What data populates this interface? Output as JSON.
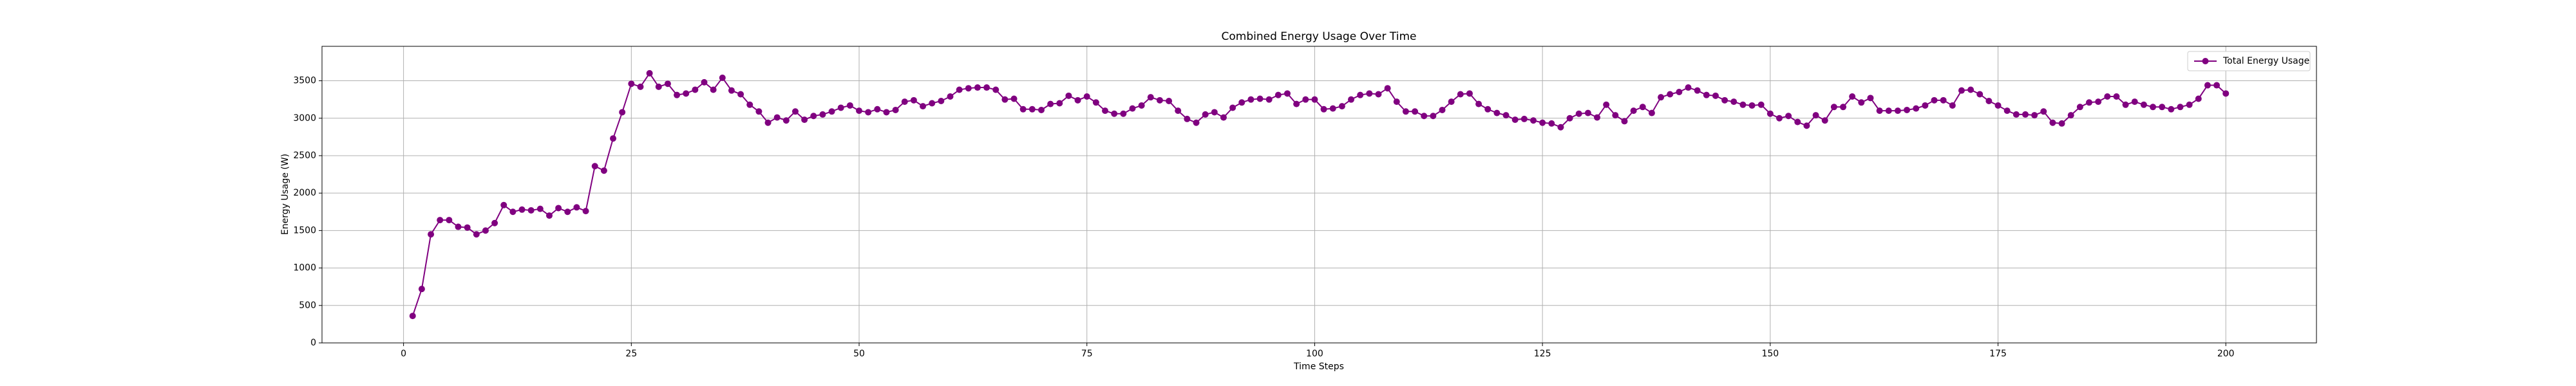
{
  "chart_data": {
    "type": "line",
    "title": "Combined Energy Usage Over Time",
    "x_label": "Time Steps",
    "y_label": "Energy Usage (W)",
    "x": [
      1,
      2,
      3,
      4,
      5,
      6,
      7,
      8,
      9,
      10,
      11,
      12,
      13,
      14,
      15,
      16,
      17,
      18,
      19,
      20,
      21,
      22,
      23,
      24,
      25,
      26,
      27,
      28,
      29,
      30,
      31,
      32,
      33,
      34,
      35,
      36,
      37,
      38,
      39,
      40,
      41,
      42,
      43,
      44,
      45,
      46,
      47,
      48,
      49,
      50,
      51,
      52,
      53,
      54,
      55,
      56,
      57,
      58,
      59,
      60,
      61,
      62,
      63,
      64,
      65,
      66,
      67,
      68,
      69,
      70,
      71,
      72,
      73,
      74,
      75,
      76,
      77,
      78,
      79,
      80,
      81,
      82,
      83,
      84,
      85,
      86,
      87,
      88,
      89,
      90,
      91,
      92,
      93,
      94,
      95,
      96,
      97,
      98,
      99,
      100,
      101,
      102,
      103,
      104,
      105,
      106,
      107,
      108,
      109,
      110,
      111,
      112,
      113,
      114,
      115,
      116,
      117,
      118,
      119,
      120,
      121,
      122,
      123,
      124,
      125,
      126,
      127,
      128,
      129,
      130,
      131,
      132,
      133,
      134,
      135,
      136,
      137,
      138,
      139,
      140,
      141,
      142,
      143,
      144,
      145,
      146,
      147,
      148,
      149,
      150,
      151,
      152,
      153,
      154,
      155,
      156,
      157,
      158,
      159,
      160,
      161,
      162,
      163,
      164,
      165,
      166,
      167,
      168,
      169,
      170,
      171,
      172,
      173,
      174,
      175,
      176,
      177,
      178,
      179,
      180,
      181,
      182,
      183,
      184,
      185,
      186,
      187,
      188,
      189,
      190,
      191,
      192,
      193,
      194,
      195,
      196,
      197,
      198,
      199,
      200
    ],
    "series": [
      {
        "name": "Total Energy Usage",
        "color": "#800080",
        "values": [
          360,
          720,
          1450,
          1640,
          1640,
          1550,
          1540,
          1450,
          1500,
          1600,
          1840,
          1750,
          1780,
          1770,
          1790,
          1700,
          1800,
          1750,
          1810,
          1760,
          2360,
          2300,
          2730,
          3080,
          3460,
          3420,
          3600,
          3420,
          3460,
          3310,
          3330,
          3380,
          3480,
          3380,
          3540,
          3370,
          3320,
          3180,
          3090,
          2940,
          3010,
          2970,
          3090,
          2980,
          3030,
          3050,
          3090,
          3140,
          3170,
          3100,
          3080,
          3120,
          3080,
          3110,
          3220,
          3240,
          3160,
          3200,
          3230,
          3290,
          3380,
          3400,
          3410,
          3410,
          3380,
          3250,
          3260,
          3120,
          3120,
          3110,
          3190,
          3200,
          3300,
          3240,
          3290,
          3210,
          3100,
          3060,
          3060,
          3130,
          3170,
          3280,
          3240,
          3230,
          3100,
          2990,
          2940,
          3050,
          3080,
          3010,
          3140,
          3210,
          3250,
          3260,
          3250,
          3310,
          3330,
          3190,
          3250,
          3250,
          3120,
          3130,
          3160,
          3250,
          3310,
          3330,
          3320,
          3400,
          3220,
          3090,
          3090,
          3030,
          3030,
          3110,
          3220,
          3320,
          3330,
          3190,
          3120,
          3070,
          3040,
          2980,
          2990,
          2970,
          2940,
          2930,
          2880,
          3000,
          3060,
          3070,
          3010,
          3180,
          3040,
          2960,
          3100,
          3150,
          3070,
          3280,
          3320,
          3350,
          3410,
          3370,
          3310,
          3300,
          3240,
          3220,
          3180,
          3170,
          3180,
          3060,
          3000,
          3030,
          2950,
          2900,
          3040,
          2970,
          3150,
          3150,
          3290,
          3210,
          3270,
          3100,
          3100,
          3100,
          3110,
          3130,
          3170,
          3240,
          3240,
          3170,
          3370,
          3380,
          3320,
          3230,
          3170,
          3100,
          3050,
          3050,
          3040,
          3090,
          2940,
          2930,
          3040,
          3150,
          3210,
          3220,
          3290,
          3290,
          3180,
          3220,
          3180,
          3150,
          3150,
          3120,
          3150,
          3180,
          3260,
          3440,
          3440,
          3330
        ]
      }
    ],
    "xlim": [
      -8.95,
      209.95
    ],
    "ylim": [
      0,
      3960
    ],
    "xticks": [
      0,
      25,
      50,
      75,
      100,
      125,
      150,
      175,
      200
    ],
    "yticks": [
      0,
      500,
      1000,
      1500,
      2000,
      2500,
      3000,
      3500
    ],
    "grid": true,
    "legend": "upper right"
  }
}
